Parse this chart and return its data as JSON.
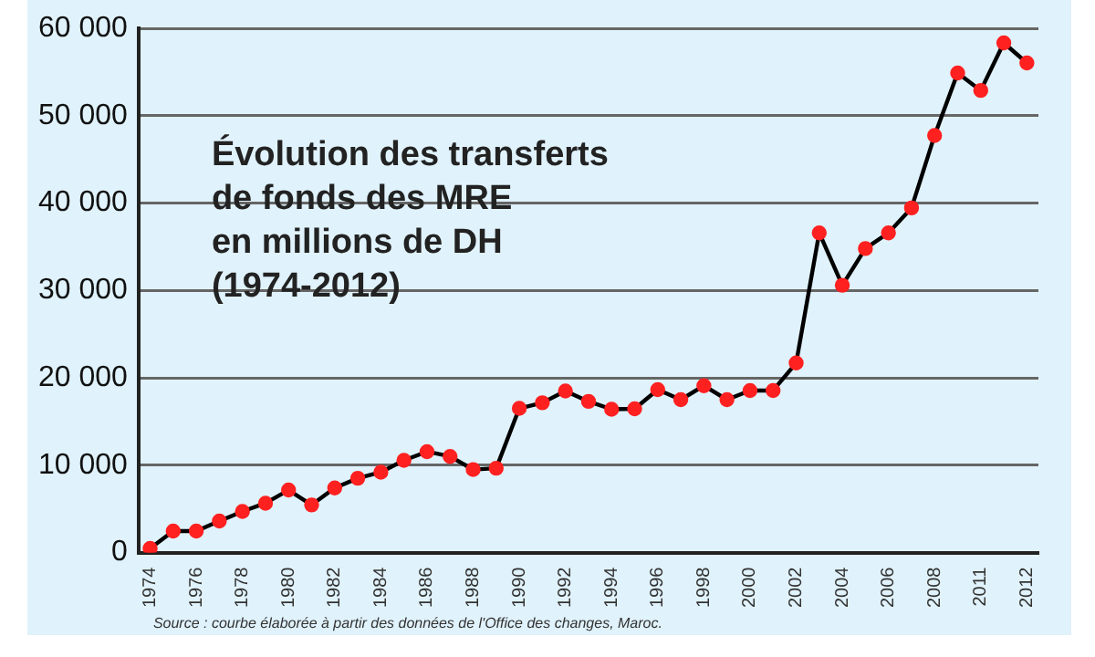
{
  "chart_data": {
    "type": "line",
    "title": "Évolution des transferts\nde fonds des MRE\nen millions de DH\n(1974-2012)",
    "categories": [
      "1974",
      null,
      "1976",
      null,
      "1978",
      null,
      "1980",
      null,
      "1982",
      null,
      "1984",
      null,
      "1986",
      null,
      "1988",
      null,
      "1990",
      null,
      "1992",
      null,
      "1994",
      null,
      "1996",
      null,
      "1998",
      null,
      "2000",
      null,
      "2002",
      null,
      "2004",
      null,
      "2006",
      null,
      "2008",
      null,
      "2011",
      null,
      "2012"
    ],
    "series": [
      {
        "color": "#000000",
        "values": [
          470,
          2450,
          2450,
          3600,
          4700,
          5650,
          7150,
          5450,
          7400,
          8500,
          9200,
          10550,
          11550,
          11000,
          9500,
          9650,
          16500,
          17150,
          18500,
          17300,
          16400,
          16450,
          18650,
          17500,
          19100,
          17500,
          18550,
          18550,
          21700,
          36600,
          30600,
          34800,
          36600,
          39450,
          47750,
          54900,
          52900,
          58350,
          56050
        ]
      }
    ],
    "ylim": [
      0,
      60000
    ],
    "yticks": [
      0,
      {
        "value": 10000,
        "label": "10 000"
      },
      {
        "value": 20000,
        "label": "20 000"
      },
      {
        "value": 30000,
        "label": "30 000"
      },
      {
        "value": 40000,
        "label": "40 000"
      },
      {
        "value": 50000,
        "label": "50 000"
      },
      {
        "value": 60000,
        "label": "60 000"
      }
    ],
    "grid": "y",
    "legend": false,
    "marker": "circle",
    "line_style": "solid",
    "annotations": [
      "Source : courbe élaborée à partir des données de l'Office des changes, Maroc."
    ]
  }
}
